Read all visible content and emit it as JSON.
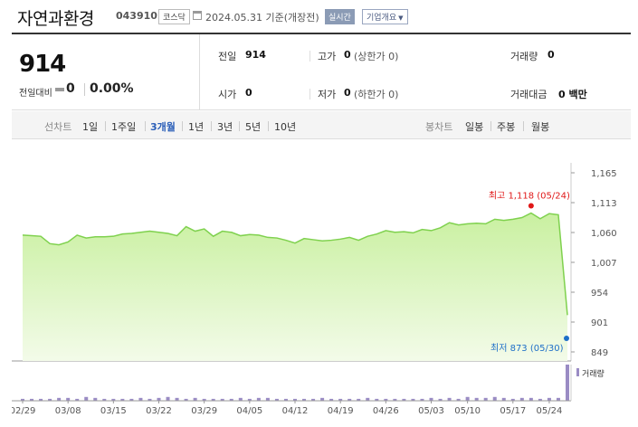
{
  "header": {
    "stock_name": "자연과환경",
    "stock_code": "043910",
    "market": "코스닥",
    "date": "2024.05.31",
    "date_suffix": "기준(개장전)",
    "realtime_label": "실시간",
    "company_button": "기업개요",
    "company_button_arrow": "▼"
  },
  "summary": {
    "price": "914",
    "change_label": "전일대비",
    "change_value": "0",
    "change_percent": "0.00%",
    "fields": {
      "prev_close": {
        "label": "전일",
        "value": "914"
      },
      "high": {
        "label": "고가",
        "value": "0",
        "sub": "(상한가 0)"
      },
      "volume": {
        "label": "거래량",
        "value": "0"
      },
      "open": {
        "label": "시가",
        "value": "0"
      },
      "low": {
        "label": "저가",
        "value": "0",
        "sub": "(하한가 0)"
      },
      "trade_amount": {
        "label": "거래대금",
        "value": "0 백만"
      }
    }
  },
  "periods": {
    "line_label": "선차트",
    "line_items": [
      "1일",
      "1주일",
      "3개월",
      "1년",
      "3년",
      "5년",
      "10년"
    ],
    "active_index": 2,
    "candle_label": "봉차트",
    "candle_items": [
      "일봉",
      "주봉",
      "월봉"
    ]
  },
  "colors": {
    "area_fill": "#c9f0a0",
    "area_stroke": "#7fd14e",
    "high_marker": "#e01818",
    "low_marker": "#1e6fc8",
    "volume_bar": "#9a8cc4",
    "active_tab": "#2b5fb8"
  },
  "chart_data": {
    "type": "area",
    "x_ticks": [
      "02/29",
      "03/08",
      "03/15",
      "03/22",
      "03/29",
      "04/05",
      "04/12",
      "04/19",
      "04/26",
      "05/03",
      "05/10",
      "05/17",
      "05/24"
    ],
    "y_ticks": [
      "1,165",
      "1,113",
      "1,060",
      "1,007",
      "954",
      "901",
      "849"
    ],
    "ylim": [
      849,
      1165
    ],
    "high_annotation": "최고 1,118 (05/24)",
    "low_annotation": "최저 873 (05/30)",
    "volume_label": "거래량",
    "prices": [
      1055,
      1054,
      1053,
      1040,
      1038,
      1043,
      1055,
      1050,
      1052,
      1052,
      1053,
      1057,
      1058,
      1060,
      1062,
      1060,
      1058,
      1054,
      1070,
      1062,
      1066,
      1053,
      1062,
      1060,
      1054,
      1056,
      1055,
      1051,
      1050,
      1046,
      1041,
      1049,
      1047,
      1045,
      1046,
      1048,
      1051,
      1046,
      1053,
      1057,
      1063,
      1060,
      1061,
      1059,
      1065,
      1063,
      1068,
      1077,
      1073,
      1075,
      1076,
      1075,
      1083,
      1081,
      1083,
      1086,
      1094,
      1084,
      1093,
      1091,
      914
    ],
    "volumes": [
      2,
      2,
      2,
      2,
      3,
      3,
      2,
      4,
      3,
      2,
      2,
      2,
      2,
      3,
      2,
      3,
      4,
      3,
      2,
      3,
      2,
      2,
      2,
      2,
      3,
      2,
      3,
      3,
      2,
      2,
      2,
      2,
      2,
      3,
      2,
      2,
      2,
      2,
      3,
      2,
      2,
      2,
      2,
      2,
      2,
      3,
      2,
      3,
      2,
      4,
      3,
      3,
      4,
      3,
      2,
      3,
      3,
      2,
      3,
      3,
      38
    ]
  }
}
